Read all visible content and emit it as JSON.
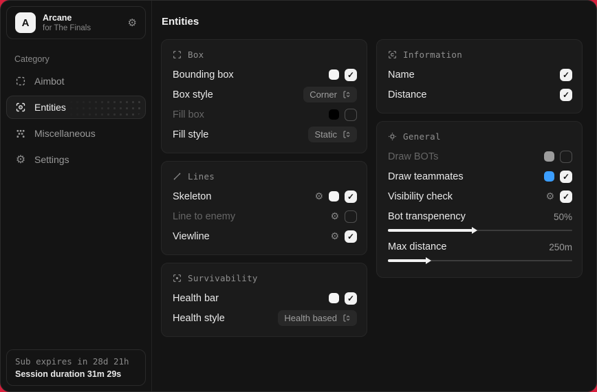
{
  "app": {
    "name": "Arcane",
    "tagline": "for The Finals",
    "logo_letter": "A"
  },
  "colors": {
    "background_red": "#d51f3c",
    "window_bg": "#141414",
    "panel_bg": "#1b1b1b",
    "teammate_blue": "#3b9eff",
    "checkbox_checked": "#f2f2f2"
  },
  "sidebar": {
    "category_label": "Category",
    "items": [
      {
        "label": "Aimbot",
        "active": false
      },
      {
        "label": "Entities",
        "active": true
      },
      {
        "label": "Miscellaneous",
        "active": false
      },
      {
        "label": "Settings",
        "active": false
      }
    ],
    "footer": {
      "line1": "Sub expires in 28d 21h",
      "line2": "Session duration 31m 29s"
    }
  },
  "main": {
    "title": "Entities",
    "panels": {
      "box": {
        "title": "Box",
        "rows": [
          {
            "label": "Bounding box",
            "swatch": "#f5f5f5",
            "checked": true
          },
          {
            "label": "Box style",
            "value": "Corner"
          },
          {
            "label": "Fill box",
            "swatch": "#000000",
            "checked": false,
            "disabled": true
          },
          {
            "label": "Fill style",
            "value": "Static"
          }
        ]
      },
      "lines": {
        "title": "Lines",
        "rows": [
          {
            "label": "Skeleton",
            "swatch": "#f5f5f5",
            "checked": true
          },
          {
            "label": "Line to enemy",
            "checked": false,
            "disabled": true
          },
          {
            "label": "Viewline",
            "checked": true
          }
        ]
      },
      "survivability": {
        "title": "Survivability",
        "rows": [
          {
            "label": "Health bar",
            "swatch": "#f5f5f5",
            "checked": true
          },
          {
            "label": "Health style",
            "value": "Health based"
          }
        ]
      },
      "information": {
        "title": "Information",
        "rows": [
          {
            "label": "Name",
            "checked": true
          },
          {
            "label": "Distance",
            "checked": true
          }
        ]
      },
      "general": {
        "title": "General",
        "rows": [
          {
            "label": "Draw BOTs",
            "swatch": "#9c9c9c",
            "checked": false,
            "disabled": true
          },
          {
            "label": "Draw teammates",
            "swatch": "#3b9eff",
            "checked": true
          },
          {
            "label": "Visibility check",
            "checked": true
          },
          {
            "label": "Bot transpenency",
            "value": "50%",
            "fill": 46
          },
          {
            "label": "Max distance",
            "value": "250m",
            "fill": 21
          }
        ]
      }
    }
  }
}
